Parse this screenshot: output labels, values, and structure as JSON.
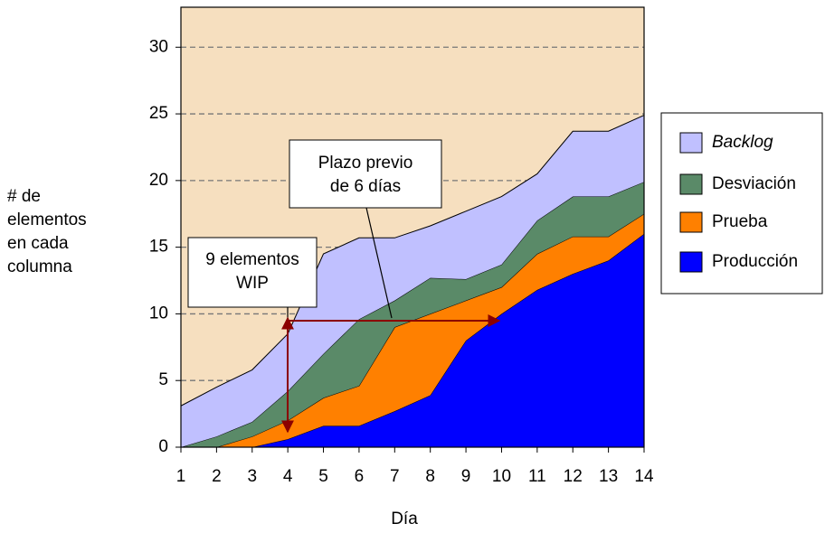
{
  "chart_data": {
    "type": "stacked_area",
    "x_label": "Día",
    "y_label": [
      "# de",
      "elementos",
      "en cada",
      "columna"
    ],
    "x": [
      1,
      2,
      3,
      4,
      5,
      6,
      7,
      8,
      9,
      10,
      11,
      12,
      13,
      14
    ],
    "xlim": [
      1,
      14
    ],
    "xticks": [
      1,
      2,
      3,
      4,
      5,
      6,
      7,
      8,
      9,
      10,
      11,
      12,
      13,
      14
    ],
    "ylim": [
      0,
      33
    ],
    "yticks": [
      0,
      5,
      10,
      15,
      20,
      25,
      30
    ],
    "grid": true,
    "stacked": true,
    "legend": "right",
    "background": "#f6dfbf",
    "series": [
      {
        "name": "Backlog",
        "color": "#c0c0ff",
        "values": [
          3.1,
          3.7,
          3.9,
          4.3,
          7.5,
          6.1,
          4.7,
          3.9,
          5.1,
          5.1,
          3.5,
          4.9,
          4.9,
          5
        ]
      },
      {
        "name": "Desviación",
        "color": "#5a8a68",
        "values": [
          0,
          0.8,
          1.1,
          2.2,
          3.3,
          5,
          2,
          2.7,
          1.6,
          1.7,
          2.5,
          3,
          3,
          2.4
        ]
      },
      {
        "name": "Prueba",
        "color": "#ff8000",
        "values": [
          0,
          0,
          0.8,
          1.4,
          2.1,
          3,
          6.3,
          6.1,
          3,
          2,
          2.7,
          2.8,
          1.8,
          1.5
        ]
      },
      {
        "name": "Producción",
        "color": "#0000ff",
        "values": [
          0,
          0,
          0,
          0.6,
          1.6,
          1.6,
          2.7,
          3.9,
          8,
          10,
          11.8,
          13,
          14,
          16
        ]
      }
    ],
    "annotations": [
      {
        "lines": [
          "Plazo previo",
          "de 6 días"
        ]
      },
      {
        "lines": [
          "9 elementos",
          "WIP"
        ]
      }
    ]
  }
}
